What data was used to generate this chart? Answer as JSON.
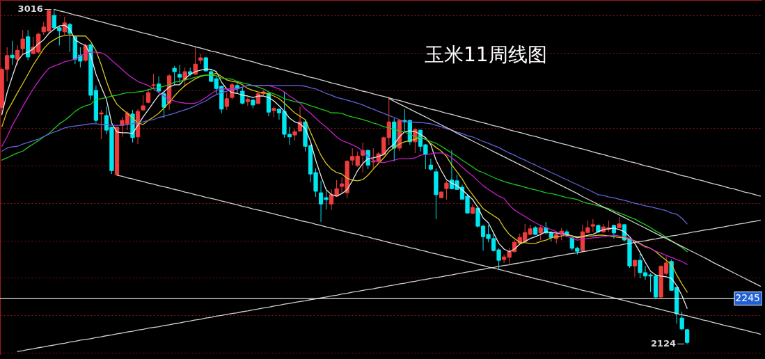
{
  "chart_data": {
    "type": "candlestick",
    "title": "玉米11周线图",
    "categories": [
      null,
      null,
      null,
      null,
      null,
      null,
      null,
      null,
      null,
      null,
      null,
      null,
      null,
      null,
      null,
      null,
      null,
      null,
      null,
      null,
      null,
      null,
      null,
      null,
      null,
      null,
      null,
      null,
      null,
      null,
      null,
      null,
      null,
      null,
      null,
      null,
      null,
      null,
      null,
      null,
      null,
      null,
      null,
      null,
      null,
      null,
      null,
      null,
      null,
      null,
      null,
      null,
      null,
      null,
      null,
      null,
      null,
      null,
      null,
      null,
      null,
      null,
      null,
      null,
      null,
      null,
      null,
      null,
      null,
      null,
      null,
      null,
      null,
      null,
      null,
      null,
      null,
      null,
      null,
      null,
      null,
      null,
      null,
      null,
      null,
      null,
      null,
      null,
      null,
      null,
      null,
      null,
      null,
      null,
      null,
      null,
      null,
      null,
      null,
      null,
      null,
      null,
      null,
      null,
      null,
      null,
      null,
      null,
      null,
      null,
      null,
      null,
      null,
      null,
      null,
      null,
      null,
      null,
      null,
      null,
      null,
      null,
      null,
      null,
      null,
      null,
      null,
      null,
      null,
      null,
      null,
      null,
      null,
      null,
      null,
      null,
      null,
      null,
      null,
      null,
      null,
      null,
      null,
      null,
      null,
      null
    ],
    "ohlc": [
      [
        2754,
        2861,
        2735,
        2856
      ],
      [
        2856,
        2915,
        2824,
        2893
      ],
      [
        2894,
        2932,
        2868,
        2887
      ],
      [
        2883,
        2920,
        2868,
        2907
      ],
      [
        2911,
        2961,
        2896,
        2937
      ],
      [
        2943,
        2961,
        2880,
        2889
      ],
      [
        2898,
        2943,
        2896,
        2915
      ],
      [
        2902,
        2954,
        2898,
        2950
      ],
      [
        2956,
        2982,
        2948,
        2969
      ],
      [
        2958,
        3015,
        2954,
        3013
      ],
      [
        3000,
        3016,
        2961,
        2967
      ],
      [
        2967,
        2971,
        2920,
        2959
      ],
      [
        2956,
        2996,
        2948,
        2980
      ],
      [
        2976,
        2980,
        2902,
        2952
      ],
      [
        2943,
        2945,
        2870,
        2883
      ],
      [
        2894,
        2915,
        2861,
        2878
      ],
      [
        2880,
        2924,
        2876,
        2920
      ],
      [
        2922,
        2924,
        2776,
        2787
      ],
      [
        2800,
        2813,
        2713,
        2720
      ],
      [
        2737,
        2748,
        2670,
        2740
      ],
      [
        2733,
        2757,
        2683,
        2694
      ],
      [
        2702,
        2703,
        2577,
        2586
      ],
      [
        2575,
        2703,
        2574,
        2702
      ],
      [
        2707,
        2729,
        2676,
        2720
      ],
      [
        2711,
        2744,
        2694,
        2739
      ],
      [
        2737,
        2748,
        2661,
        2674
      ],
      [
        2676,
        2750,
        2657,
        2744
      ],
      [
        2748,
        2787,
        2744,
        2759
      ],
      [
        2768,
        2804,
        2766,
        2794
      ],
      [
        2813,
        2844,
        2804,
        2815
      ],
      [
        2817,
        2837,
        2794,
        2798
      ],
      [
        2791,
        2800,
        2726,
        2755
      ],
      [
        2766,
        2843,
        2748,
        2839
      ],
      [
        2859,
        2865,
        2813,
        2850
      ],
      [
        2843,
        2868,
        2818,
        2835
      ],
      [
        2828,
        2861,
        2809,
        2850
      ],
      [
        2850,
        2861,
        2837,
        2843
      ],
      [
        2843,
        2919,
        2841,
        2870
      ],
      [
        2880,
        2898,
        2870,
        2887
      ],
      [
        2887,
        2889,
        2850,
        2852
      ],
      [
        2850,
        2857,
        2822,
        2824
      ],
      [
        2831,
        2837,
        2791,
        2805
      ],
      [
        2811,
        2813,
        2739,
        2750
      ],
      [
        2757,
        2794,
        2748,
        2778
      ],
      [
        2781,
        2820,
        2776,
        2815
      ],
      [
        2813,
        2822,
        2791,
        2804
      ],
      [
        2798,
        2809,
        2763,
        2766
      ],
      [
        2770,
        2781,
        2759,
        2776
      ],
      [
        2774,
        2778,
        2753,
        2761
      ],
      [
        2765,
        2794,
        2763,
        2791
      ],
      [
        2791,
        2800,
        2787,
        2796
      ],
      [
        2792,
        2794,
        2731,
        2742
      ],
      [
        2746,
        2757,
        2729,
        2752
      ],
      [
        2750,
        2752,
        2722,
        2740
      ],
      [
        2744,
        2796,
        2674,
        2683
      ],
      [
        2683,
        2703,
        2655,
        2676
      ],
      [
        2681,
        2698,
        2666,
        2690
      ],
      [
        2692,
        2757,
        2689,
        2716
      ],
      [
        2716,
        2720,
        2637,
        2651
      ],
      [
        2653,
        2655,
        2555,
        2577
      ],
      [
        2581,
        2592,
        2516,
        2531
      ],
      [
        2527,
        2559,
        2449,
        2497
      ],
      [
        2514,
        2531,
        2483,
        2509
      ],
      [
        2497,
        2536,
        2481,
        2522
      ],
      [
        2518,
        2561,
        2516,
        2538
      ],
      [
        2544,
        2568,
        2527,
        2551
      ],
      [
        2527,
        2614,
        2512,
        2611
      ],
      [
        2614,
        2646,
        2601,
        2624
      ],
      [
        2600,
        2637,
        2596,
        2625
      ],
      [
        2627,
        2661,
        2581,
        2640
      ],
      [
        2640,
        2642,
        2590,
        2601
      ],
      [
        2609,
        2646,
        2592,
        2611
      ],
      [
        2611,
        2635,
        2607,
        2631
      ],
      [
        2629,
        2677,
        2626,
        2674
      ],
      [
        2674,
        2778,
        2655,
        2716
      ],
      [
        2716,
        2726,
        2611,
        2646
      ],
      [
        2646,
        2720,
        2638,
        2720
      ],
      [
        2720,
        2750,
        2692,
        2716
      ],
      [
        2720,
        2722,
        2655,
        2663
      ],
      [
        2663,
        2698,
        2633,
        2696
      ],
      [
        2694,
        2696,
        2637,
        2651
      ],
      [
        2655,
        2657,
        2590,
        2629
      ],
      [
        2601,
        2618,
        2586,
        2590
      ],
      [
        2583,
        2592,
        2457,
        2522
      ],
      [
        2514,
        2531,
        2512,
        2529
      ],
      [
        2538,
        2559,
        2509,
        2553
      ],
      [
        2561,
        2640,
        2536,
        2538
      ],
      [
        2559,
        2575,
        2535,
        2536
      ],
      [
        2542,
        2549,
        2509,
        2510
      ],
      [
        2518,
        2522,
        2472,
        2473
      ],
      [
        2472,
        2497,
        2470,
        2488
      ],
      [
        2486,
        2488,
        2434,
        2438
      ],
      [
        2438,
        2442,
        2373,
        2410
      ],
      [
        2416,
        2442,
        2395,
        2405
      ],
      [
        2405,
        2421,
        2370,
        2373
      ],
      [
        2375,
        2379,
        2323,
        2347
      ],
      [
        2349,
        2362,
        2340,
        2356
      ],
      [
        2355,
        2381,
        2338,
        2371
      ],
      [
        2370,
        2401,
        2368,
        2395
      ],
      [
        2392,
        2418,
        2388,
        2408
      ],
      [
        2397,
        2444,
        2395,
        2421
      ],
      [
        2416,
        2442,
        2414,
        2431
      ],
      [
        2434,
        2438,
        2414,
        2416
      ],
      [
        2420,
        2442,
        2401,
        2434
      ],
      [
        2434,
        2449,
        2416,
        2420
      ],
      [
        2421,
        2425,
        2397,
        2408
      ],
      [
        2405,
        2420,
        2392,
        2416
      ],
      [
        2416,
        2433,
        2401,
        2425
      ],
      [
        2423,
        2429,
        2412,
        2416
      ],
      [
        2407,
        2410,
        2373,
        2379
      ],
      [
        2379,
        2383,
        2362,
        2371
      ],
      [
        2373,
        2442,
        2370,
        2423
      ],
      [
        2421,
        2453,
        2420,
        2434
      ],
      [
        2438,
        2457,
        2423,
        2442
      ],
      [
        2440,
        2442,
        2420,
        2423
      ],
      [
        2423,
        2444,
        2420,
        2436
      ],
      [
        2429,
        2453,
        2423,
        2434
      ],
      [
        2440,
        2442,
        2405,
        2420
      ],
      [
        2434,
        2462,
        2433,
        2444
      ],
      [
        2442,
        2444,
        2397,
        2401
      ],
      [
        2405,
        2405,
        2327,
        2332
      ],
      [
        2332,
        2349,
        2303,
        2347
      ],
      [
        2347,
        2364,
        2299,
        2314
      ],
      [
        2314,
        2332,
        2295,
        2305
      ],
      [
        2308,
        2312,
        2262,
        2305
      ],
      [
        2305,
        2308,
        2245,
        2249
      ],
      [
        2249,
        2334,
        2245,
        2331
      ],
      [
        2312,
        2358,
        2308,
        2340
      ],
      [
        2344,
        2349,
        2267,
        2267
      ],
      [
        2275,
        2277,
        2178,
        2204
      ],
      [
        2193,
        2210,
        2160,
        2164
      ],
      [
        2162,
        2164,
        2124,
        2128
      ],
      null,
      null,
      null,
      null,
      null,
      null,
      null,
      null,
      null,
      null,
      null,
      null,
      null,
      null
    ],
    "colors": [
      "#f03c3c",
      "#f03c3c",
      "#00e6f0",
      "#f03c3c",
      "#f03c3c",
      "#00e6f0",
      "#f03c3c",
      "#f03c3c",
      "#f03c3c",
      "#f03c3c",
      "#00e6f0",
      "#00e6f0",
      "#f03c3c",
      "#00e6f0",
      "#00e6f0",
      "#00e6f0",
      "#f03c3c",
      "#00e6f0",
      "#00e6f0",
      "#f03c3c",
      "#00e6f0",
      "#00e6f0",
      "#f03c3c",
      "#f03c3c",
      "#f03c3c",
      "#00e6f0",
      "#f03c3c",
      "#f03c3c",
      "#f03c3c",
      "#f03c3c",
      "#00e6f0",
      "#00e6f0",
      "#f03c3c",
      "#00e6f0",
      "#00e6f0",
      "#f03c3c",
      "#00e6f0",
      "#f03c3c",
      "#f03c3c",
      "#00e6f0",
      "#00e6f0",
      "#00e6f0",
      "#00e6f0",
      "#f03c3c",
      "#f03c3c",
      "#00e6f0",
      "#00e6f0",
      "#f03c3c",
      "#00e6f0",
      "#f03c3c",
      "#f03c3c",
      "#00e6f0",
      "#f03c3c",
      "#00e6f0",
      "#00e6f0",
      "#00e6f0",
      "#f03c3c",
      "#f03c3c",
      "#00e6f0",
      "#00e6f0",
      "#00e6f0",
      "#00e6f0",
      "#00e6f0",
      "#f03c3c",
      "#f03c3c",
      "#f03c3c",
      "#f03c3c",
      "#f03c3c",
      "#f03c3c",
      "#f03c3c",
      "#00e6f0",
      "#f03c3c",
      "#f03c3c",
      "#f03c3c",
      "#f03c3c",
      "#00e6f0",
      "#f03c3c",
      "#00e6f0",
      "#00e6f0",
      "#f03c3c",
      "#00e6f0",
      "#00e6f0",
      "#00e6f0",
      "#00e6f0",
      "#f03c3c",
      "#f03c3c",
      "#00e6f0",
      "#00e6f0",
      "#00e6f0",
      "#00e6f0",
      "#f03c3c",
      "#00e6f0",
      "#00e6f0",
      "#00e6f0",
      "#00e6f0",
      "#00e6f0",
      "#f03c3c",
      "#f03c3c",
      "#f03c3c",
      "#f03c3c",
      "#f03c3c",
      "#f03c3c",
      "#00e6f0",
      "#f03c3c",
      "#00e6f0",
      "#00e6f0",
      "#f03c3c",
      "#f03c3c",
      "#00e6f0",
      "#00e6f0",
      "#00e6f0",
      "#f03c3c",
      "#f03c3c",
      "#f03c3c",
      "#00e6f0",
      "#f03c3c",
      "#f03c3c",
      "#00e6f0",
      "#f03c3c",
      "#00e6f0",
      "#00e6f0",
      "#f03c3c",
      "#00e6f0",
      "#00e6f0",
      "#00e6f0",
      "#00e6f0",
      "#f03c3c",
      "#f03c3c",
      "#00e6f0",
      "#00e6f0",
      "#00e6f0",
      "#00e6f0",
      null,
      null,
      null,
      null,
      null,
      null,
      null,
      null,
      null,
      null,
      null,
      null,
      null,
      null
    ],
    "series": [
      {
        "type": "line",
        "color": "#e8e8e8",
        "values": [
          2735,
          2794,
          2837,
          2878,
          2896,
          2902,
          2911,
          2924,
          2935,
          2952,
          2963,
          2972,
          2974,
          2963,
          2935,
          2926,
          2920,
          2893,
          2843,
          2809,
          2776,
          2713,
          2689,
          2687,
          2687,
          2685,
          2707,
          2729,
          2748,
          2768,
          2787,
          2796,
          2809,
          2815,
          2815,
          2831,
          2843,
          2850,
          2854,
          2857,
          2856,
          2850,
          2822,
          2804,
          2794,
          2792,
          2787,
          2785,
          2781,
          2785,
          2785,
          2781,
          2772,
          2759,
          2744,
          2726,
          2716,
          2711,
          2698,
          2664,
          2614,
          2572,
          2535,
          2522,
          2518,
          2525,
          2535,
          2559,
          2586,
          2605,
          2618,
          2620,
          2624,
          2629,
          2646,
          2657,
          2676,
          2690,
          2692,
          2690,
          2683,
          2674,
          2655,
          2614,
          2586,
          2562,
          2553,
          2546,
          2535,
          2522,
          2509,
          2488,
          2460,
          2447,
          2420,
          2392,
          2377,
          2370,
          2377,
          2390,
          2397,
          2405,
          2410,
          2416,
          2423,
          2421,
          2420,
          2418,
          2416,
          2412,
          2407,
          2410,
          2414,
          2416,
          2423,
          2429,
          2431,
          2433,
          2429,
          2423,
          2410,
          2392,
          2368,
          2342,
          2318,
          2308,
          2305,
          2303,
          2299,
          2280,
          2253,
          2219,
          null,
          null,
          null,
          null,
          null,
          null,
          null,
          null,
          null,
          null,
          null,
          null,
          null,
          null
        ]
      },
      {
        "type": "line",
        "color": "#d8c41c",
        "values": [
          2703,
          2744,
          2768,
          2794,
          2818,
          2843,
          2868,
          2889,
          2911,
          2926,
          2935,
          2943,
          2946,
          2948,
          2945,
          2945,
          2945,
          2930,
          2906,
          2868,
          2824,
          2787,
          2763,
          2750,
          2739,
          2726,
          2713,
          2709,
          2720,
          2729,
          2739,
          2753,
          2768,
          2785,
          2800,
          2813,
          2822,
          2831,
          2837,
          2841,
          2841,
          2846,
          2837,
          2828,
          2824,
          2822,
          2815,
          2805,
          2800,
          2796,
          2794,
          2791,
          2785,
          2778,
          2766,
          2753,
          2740,
          2731,
          2722,
          2689,
          2657,
          2627,
          2605,
          2590,
          2581,
          2577,
          2566,
          2561,
          2559,
          2562,
          2574,
          2590,
          2605,
          2620,
          2637,
          2648,
          2657,
          2663,
          2666,
          2670,
          2674,
          2670,
          2659,
          2648,
          2638,
          2624,
          2601,
          2583,
          2564,
          2540,
          2522,
          2503,
          2485,
          2475,
          2466,
          2457,
          2434,
          2416,
          2405,
          2395,
          2394,
          2392,
          2392,
          2397,
          2401,
          2407,
          2410,
          2412,
          2414,
          2412,
          2410,
          2410,
          2412,
          2412,
          2414,
          2414,
          2412,
          2410,
          2408,
          2407,
          2403,
          2399,
          2392,
          2384,
          2379,
          2370,
          2358,
          2347,
          2336,
          2308,
          2284,
          2262,
          null,
          null,
          null,
          null,
          null,
          null,
          null,
          null,
          null,
          null,
          null,
          null,
          null,
          null
        ]
      },
      {
        "type": "line",
        "color": "#c81ec8",
        "values": [
          2651,
          2676,
          2707,
          2731,
          2757,
          2781,
          2804,
          2824,
          2843,
          2859,
          2865,
          2870,
          2876,
          2880,
          2883,
          2893,
          2898,
          2902,
          2902,
          2900,
          2893,
          2880,
          2868,
          2856,
          2843,
          2833,
          2824,
          2818,
          2813,
          2804,
          2794,
          2785,
          2776,
          2772,
          2768,
          2766,
          2765,
          2766,
          2772,
          2781,
          2791,
          2800,
          2804,
          2804,
          2804,
          2805,
          2809,
          2813,
          2813,
          2813,
          2813,
          2813,
          2809,
          2804,
          2796,
          2785,
          2776,
          2766,
          2750,
          2739,
          2726,
          2713,
          2702,
          2689,
          2676,
          2666,
          2661,
          2655,
          2648,
          2638,
          2624,
          2614,
          2609,
          2607,
          2611,
          2614,
          2618,
          2618,
          2618,
          2620,
          2627,
          2629,
          2631,
          2633,
          2633,
          2629,
          2620,
          2609,
          2596,
          2583,
          2572,
          2559,
          2546,
          2536,
          2527,
          2518,
          2512,
          2494,
          2481,
          2472,
          2464,
          2455,
          2447,
          2440,
          2434,
          2429,
          2423,
          2418,
          2410,
          2407,
          2401,
          2403,
          2405,
          2407,
          2408,
          2410,
          2412,
          2414,
          2412,
          2410,
          2405,
          2397,
          2390,
          2382,
          2379,
          2371,
          2366,
          2360,
          2355,
          2349,
          2344,
          2336,
          null,
          null,
          null,
          null,
          null,
          null,
          null,
          null,
          null,
          null,
          null,
          null,
          null,
          null
        ]
      },
      {
        "type": "line",
        "color": "#1ec81e",
        "values": [
          2614,
          2620,
          2627,
          2633,
          2638,
          2648,
          2657,
          2666,
          2676,
          2685,
          2698,
          2711,
          2720,
          2731,
          2744,
          2753,
          2759,
          2763,
          2776,
          2778,
          2781,
          2785,
          2787,
          2791,
          2794,
          2794,
          2796,
          2798,
          2802,
          2805,
          2807,
          2811,
          2815,
          2822,
          2824,
          2828,
          2831,
          2835,
          2839,
          2841,
          2841,
          2839,
          2833,
          2831,
          2830,
          2824,
          2820,
          2817,
          2813,
          2809,
          2804,
          2796,
          2791,
          2785,
          2778,
          2774,
          2770,
          2768,
          2765,
          2759,
          2755,
          2750,
          2746,
          2740,
          2740,
          2739,
          2733,
          2729,
          2726,
          2722,
          2718,
          2713,
          2709,
          2703,
          2700,
          2696,
          2692,
          2689,
          2683,
          2676,
          2674,
          2670,
          2664,
          2659,
          2651,
          2642,
          2633,
          2624,
          2614,
          2605,
          2596,
          2586,
          2581,
          2574,
          2568,
          2562,
          2557,
          2553,
          2549,
          2546,
          2542,
          2538,
          2535,
          2531,
          2527,
          2525,
          2522,
          2518,
          2514,
          2512,
          2509,
          2503,
          2499,
          2496,
          2492,
          2488,
          2485,
          2479,
          2473,
          2468,
          2462,
          2457,
          2449,
          2442,
          2434,
          2425,
          2418,
          2408,
          2399,
          2390,
          2381,
          2370,
          null,
          null,
          null,
          null,
          null,
          null,
          null,
          null,
          null,
          null,
          null,
          null,
          null,
          null
        ]
      },
      {
        "type": "line",
        "color": "#6464dc",
        "values": [
          2638,
          2646,
          2650,
          2651,
          2657,
          2661,
          2666,
          2670,
          2677,
          2683,
          2689,
          2694,
          2700,
          2703,
          2705,
          2707,
          2709,
          2711,
          2711,
          2709,
          2709,
          2707,
          2707,
          2707,
          2709,
          2711,
          2715,
          2716,
          2720,
          2722,
          2728,
          2731,
          2735,
          2739,
          2744,
          2748,
          2753,
          2759,
          2766,
          2772,
          2781,
          2789,
          2794,
          2798,
          2802,
          2804,
          2809,
          2813,
          2813,
          2813,
          2813,
          2813,
          2813,
          2813,
          2813,
          2813,
          2813,
          2813,
          2811,
          2807,
          2804,
          2798,
          2792,
          2787,
          2781,
          2778,
          2774,
          2770,
          2766,
          2761,
          2755,
          2750,
          2744,
          2739,
          2733,
          2728,
          2722,
          2716,
          2716,
          2715,
          2715,
          2713,
          2711,
          2707,
          2703,
          2698,
          2694,
          2689,
          2685,
          2679,
          2676,
          2670,
          2664,
          2659,
          2653,
          2648,
          2640,
          2633,
          2627,
          2620,
          2614,
          2607,
          2601,
          2594,
          2588,
          2581,
          2575,
          2568,
          2562,
          2555,
          2549,
          2542,
          2536,
          2529,
          2522,
          2520,
          2516,
          2514,
          2510,
          2507,
          2503,
          2499,
          2496,
          2492,
          2490,
          2486,
          2483,
          2479,
          2473,
          2470,
          2459,
          2444,
          null,
          null,
          null,
          null,
          null,
          null,
          null,
          null,
          null,
          null,
          null,
          null,
          null,
          null
        ]
      },
      {
        "type": "line",
        "color": "#d2d2d2",
        "values": [
          null,
          null,
          null,
          null,
          null,
          null,
          null,
          null,
          null,
          null,
          3016,
          3012,
          3009,
          3005,
          3001,
          2998,
          2994,
          2990,
          2986,
          2983,
          2979,
          2975,
          2972,
          2968,
          2964,
          2961,
          2957,
          2953,
          2950,
          2946,
          2942,
          2939,
          2935,
          2931,
          2927,
          2924,
          2920,
          2916,
          2913,
          2909,
          2905,
          2902,
          2898,
          2894,
          2891,
          2887,
          2883,
          2880,
          2876,
          2872,
          2868,
          2865,
          2861,
          2857,
          2854,
          2850,
          2846,
          2843,
          2839,
          2835,
          2832,
          2828,
          2824,
          2820,
          2817,
          2813,
          2809,
          2806,
          2802,
          2798,
          2795,
          2791,
          2787,
          2784,
          2780,
          2776,
          2773,
          2769,
          2765,
          2761,
          2758,
          2754,
          2750,
          2747,
          2743,
          2739,
          2736,
          2732,
          2728,
          2725,
          2721,
          2717,
          2714,
          2710,
          2706,
          2703,
          2699,
          2695,
          2691,
          2688,
          2684,
          2680,
          2677,
          2673,
          2669,
          2666,
          2662,
          2658,
          2655,
          2651,
          2647,
          2644,
          2640,
          2636,
          2632,
          2629,
          2625,
          2621,
          2618,
          2614,
          2610,
          2607,
          2603,
          2599,
          2596,
          2592,
          2588,
          2585,
          2581,
          2577,
          2573,
          2570,
          2566,
          2562,
          2559,
          2555,
          2551,
          2548,
          2544,
          2540,
          2537,
          2533,
          2529,
          2526,
          2522,
          2518
        ]
      },
      {
        "type": "line",
        "color": "#d2d2d2",
        "values": [
          null,
          null,
          null,
          null,
          null,
          null,
          null,
          null,
          null,
          null,
          null,
          null,
          null,
          null,
          null,
          null,
          null,
          null,
          null,
          null,
          null,
          null,
          2574,
          2571,
          2567,
          2564,
          2560,
          2557,
          2553,
          2550,
          2546,
          2543,
          2540,
          2536,
          2533,
          2529,
          2526,
          2522,
          2519,
          2515,
          2512,
          2509,
          2505,
          2502,
          2498,
          2495,
          2491,
          2488,
          2484,
          2481,
          2478,
          2474,
          2471,
          2467,
          2464,
          2460,
          2457,
          2453,
          2450,
          2447,
          2443,
          2440,
          2436,
          2433,
          2429,
          2426,
          2422,
          2419,
          2416,
          2412,
          2409,
          2405,
          2402,
          2398,
          2395,
          2391,
          2388,
          2385,
          2381,
          2378,
          2374,
          2371,
          2367,
          2364,
          2360,
          2357,
          2354,
          2350,
          2347,
          2343,
          2340,
          2336,
          2333,
          2329,
          2326,
          2323,
          2319,
          2316,
          2312,
          2309,
          2305,
          2302,
          2298,
          2295,
          2292,
          2288,
          2285,
          2281,
          2278,
          2274,
          2271,
          2267,
          2264,
          2261,
          2257,
          2254,
          2250,
          2247,
          2243,
          2240,
          2236,
          2233,
          2229,
          2226,
          2223,
          2219,
          2216,
          2212,
          2209,
          2205,
          2202,
          2199,
          2195,
          2192,
          2188,
          2185,
          2181,
          2178,
          2174,
          2171,
          2168,
          2164,
          2161,
          2157,
          2154,
          2150
        ]
      },
      {
        "type": "line",
        "color": "#d2d2d2",
        "values": [
          null,
          null,
          null,
          2104,
          2106,
          2109,
          2111,
          2114,
          2116,
          2119,
          2121,
          2124,
          2126,
          2129,
          2131,
          2134,
          2136,
          2138,
          2141,
          2143,
          2146,
          2148,
          2151,
          2153,
          2156,
          2158,
          2161,
          2163,
          2166,
          2168,
          2170,
          2173,
          2175,
          2178,
          2180,
          2183,
          2185,
          2188,
          2190,
          2193,
          2195,
          2198,
          2200,
          2203,
          2205,
          2207,
          2210,
          2212,
          2215,
          2217,
          2220,
          2222,
          2225,
          2227,
          2230,
          2232,
          2235,
          2237,
          2239,
          2242,
          2244,
          2247,
          2249,
          2252,
          2254,
          2257,
          2259,
          2262,
          2264,
          2267,
          2269,
          2271,
          2274,
          2276,
          2279,
          2281,
          2284,
          2286,
          2289,
          2291,
          2294,
          2296,
          2299,
          2301,
          2303,
          2306,
          2308,
          2311,
          2313,
          2316,
          2318,
          2321,
          2323,
          2326,
          2328,
          2331,
          2333,
          2335,
          2338,
          2340,
          2343,
          2345,
          2348,
          2350,
          2353,
          2355,
          2358,
          2360,
          2363,
          2365,
          2367,
          2370,
          2372,
          2375,
          2377,
          2380,
          2382,
          2385,
          2387,
          2390,
          2392,
          2395,
          2397,
          2399,
          2402,
          2404,
          2407,
          2409,
          2412,
          2414,
          2417,
          2419,
          2422,
          2424,
          2427,
          2429,
          2431,
          2434,
          2436,
          2439,
          2441,
          2444,
          2446,
          2449,
          2451,
          2454
        ]
      },
      {
        "type": "line",
        "color": "#d2d2d2",
        "values": [
          null,
          null,
          null,
          null,
          null,
          null,
          null,
          null,
          null,
          null,
          null,
          null,
          null,
          null,
          null,
          null,
          null,
          null,
          null,
          null,
          null,
          null,
          null,
          null,
          null,
          null,
          null,
          null,
          null,
          null,
          null,
          null,
          null,
          null,
          null,
          null,
          null,
          null,
          null,
          null,
          null,
          null,
          null,
          null,
          null,
          null,
          null,
          null,
          null,
          null,
          null,
          null,
          null,
          null,
          null,
          null,
          null,
          null,
          null,
          null,
          null,
          null,
          null,
          null,
          null,
          null,
          null,
          null,
          null,
          null,
          null,
          null,
          null,
          null,
          2778,
          2771,
          2764,
          2757,
          2750,
          2743,
          2736,
          2729,
          2722,
          2715,
          2708,
          2701,
          2694,
          2686,
          2679,
          2672,
          2665,
          2658,
          2651,
          2644,
          2637,
          2630,
          2623,
          2616,
          2609,
          2602,
          2595,
          2588,
          2581,
          2574,
          2567,
          2560,
          2553,
          2546,
          2539,
          2532,
          2525,
          2517,
          2510,
          2503,
          2496,
          2489,
          2482,
          2475,
          2468,
          2461,
          2454,
          2447,
          2440,
          2433,
          2426,
          2419,
          2412,
          2405,
          2398,
          2391,
          2384,
          2377,
          2370,
          2363,
          2356,
          2349,
          2341,
          2334,
          2327,
          2320,
          2313,
          2306,
          2299,
          2292,
          2285,
          2278
        ]
      }
    ],
    "ylim": [
      2095,
      3041
    ],
    "yticks": [
      {
        "value": 2100,
        "label": null
      },
      {
        "value": 2200,
        "label": null
      },
      {
        "value": 2300,
        "label": null
      },
      {
        "value": 2400,
        "label": null
      },
      {
        "value": 2500,
        "label": null
      },
      {
        "value": 2600,
        "label": null
      },
      {
        "value": 2700,
        "label": null
      },
      {
        "value": 2800,
        "label": null
      },
      {
        "value": 2900,
        "label": null
      },
      {
        "value": 3000,
        "label": null
      }
    ],
    "grid": true,
    "ref_lines": [
      {
        "axis": "y",
        "value": 2245,
        "label": "2245",
        "color": "#e6e6e6"
      }
    ],
    "annotations": [
      "3016",
      "2124"
    ]
  }
}
